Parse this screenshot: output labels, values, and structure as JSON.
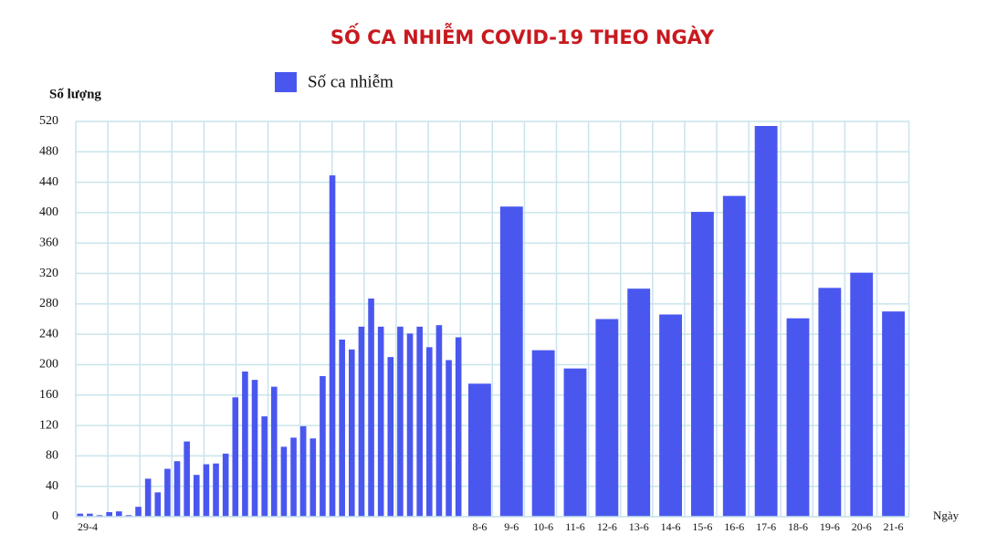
{
  "chart_data": {
    "type": "bar",
    "title": "SỐ CA NHIỄM COVID-19 THEO NGÀY",
    "y_label": "Số lượng",
    "x_label": "Ngày",
    "categories": [
      "29-4",
      null,
      null,
      null,
      null,
      null,
      null,
      null,
      null,
      null,
      null,
      null,
      null,
      null,
      null,
      null,
      null,
      null,
      null,
      null,
      null,
      null,
      null,
      null,
      null,
      null,
      null,
      null,
      null,
      null,
      null,
      null,
      null,
      null,
      null,
      null,
      null,
      null,
      null,
      null,
      "8-6",
      "9-6",
      "10-6",
      "11-6",
      "12-6",
      "13-6",
      "14-6",
      "15-6",
      "16-6",
      "17-6",
      "18-6",
      "19-6",
      "20-6",
      "21-6"
    ],
    "series": [
      {
        "name": "Số ca nhiễm",
        "color": "#4a57ef",
        "values": [
          4,
          4,
          2,
          6,
          7,
          2,
          13,
          50,
          32,
          63,
          73,
          99,
          55,
          69,
          70,
          83,
          157,
          191,
          180,
          132,
          171,
          92,
          104,
          119,
          103,
          185,
          449,
          233,
          220,
          250,
          287,
          250,
          210,
          250,
          241,
          250,
          223,
          252,
          206,
          236,
          175,
          408,
          219,
          195,
          260,
          300,
          266,
          401,
          422,
          514,
          261,
          301,
          321,
          270
        ]
      }
    ],
    "ylim": [
      0,
      520
    ],
    "yticks": [
      0,
      40,
      80,
      120,
      160,
      200,
      240,
      280,
      320,
      360,
      400,
      440,
      480,
      520
    ],
    "grid": true
  }
}
